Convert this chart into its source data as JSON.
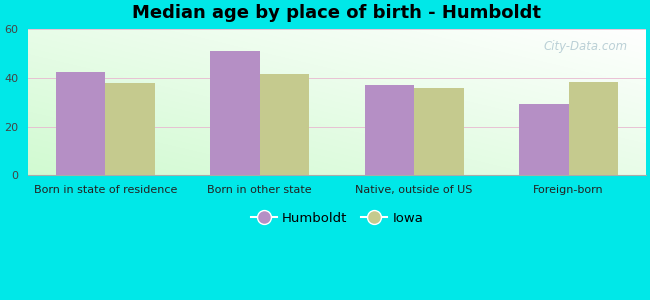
{
  "title": "Median age by place of birth - Humboldt",
  "categories": [
    "Born in state of residence",
    "Born in other state",
    "Native, outside of US",
    "Foreign-born"
  ],
  "humboldt_values": [
    42.5,
    51.0,
    37.0,
    29.5
  ],
  "iowa_values": [
    38.0,
    41.5,
    36.0,
    38.5
  ],
  "humboldt_color": "#b58fc5",
  "iowa_color": "#c5ca8e",
  "ylim": [
    0,
    60
  ],
  "yticks": [
    0,
    20,
    40,
    60
  ],
  "bar_width": 0.32,
  "legend_humboldt": "Humboldt",
  "legend_iowa": "Iowa",
  "background_color": "#00e8e8",
  "title_fontsize": 13,
  "tick_fontsize": 8,
  "legend_fontsize": 9.5,
  "gradient_top": "#f5fff5",
  "gradient_bottom": "#c8f0c8",
  "gradient_right": "#ffffff"
}
